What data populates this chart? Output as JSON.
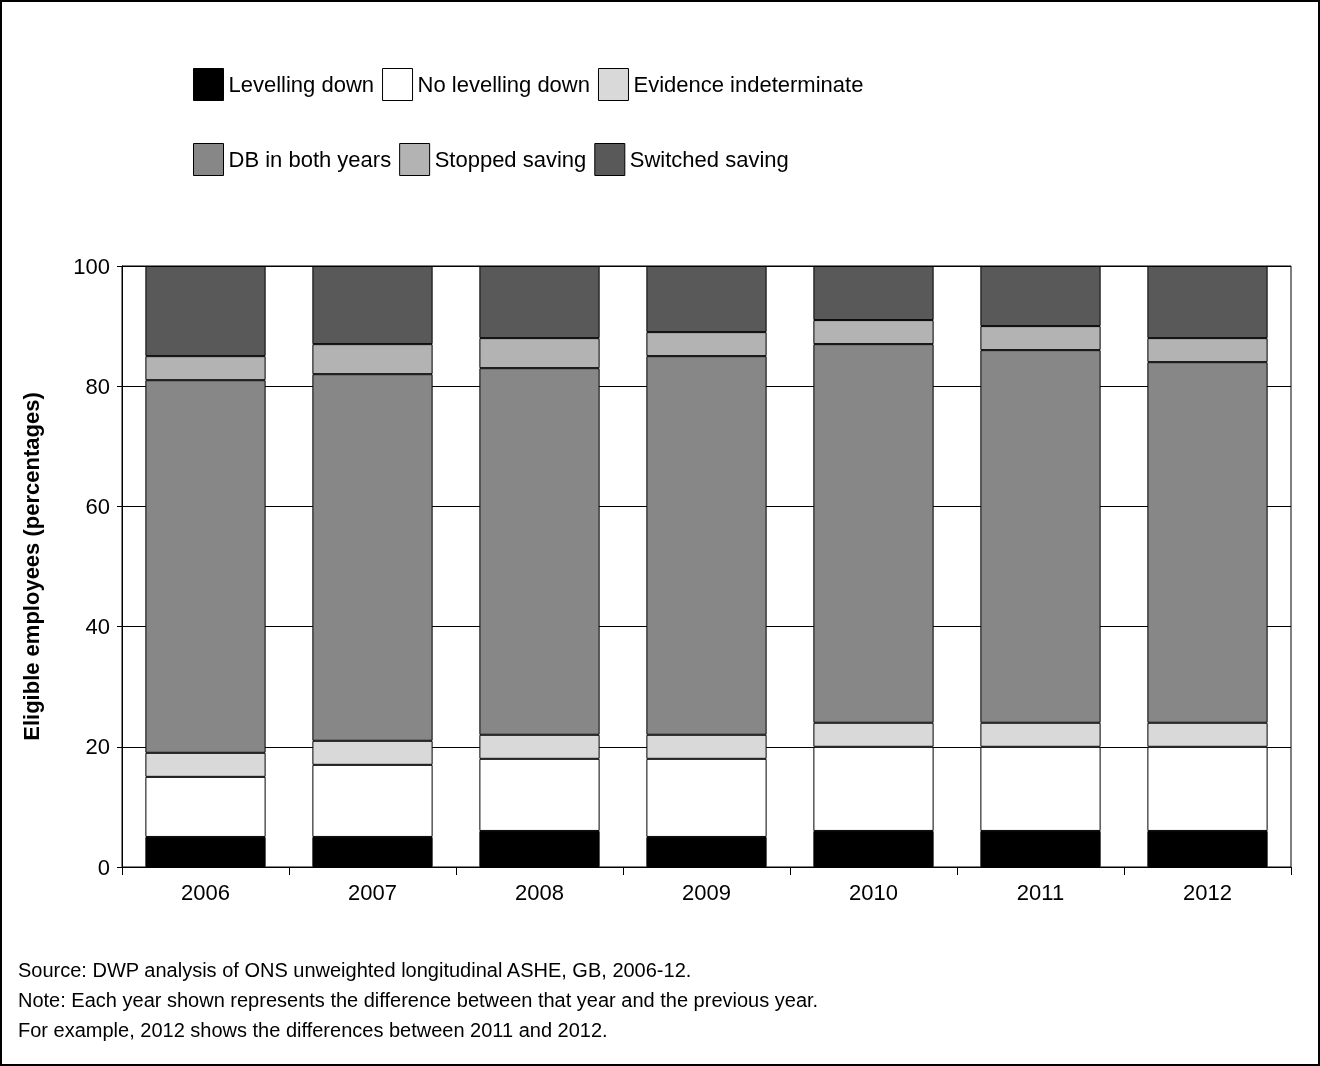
{
  "chart_data": {
    "type": "bar",
    "stacked": true,
    "ylabel": "Eligible employees (percentages)",
    "categories": [
      "2006",
      "2007",
      "2008",
      "2009",
      "2010",
      "2011",
      "2012"
    ],
    "series": [
      {
        "name": "Levelling down",
        "color": "#000000",
        "values": [
          5,
          5,
          6,
          5,
          6,
          6,
          6
        ]
      },
      {
        "name": "No levelling down",
        "color": "#ffffff",
        "values": [
          10,
          12,
          12,
          13,
          14,
          14,
          14
        ]
      },
      {
        "name": "Evidence indeterminate",
        "color": "#d9d9d9",
        "values": [
          4,
          4,
          4,
          4,
          4,
          4,
          4
        ]
      },
      {
        "name": "DB in both years",
        "color": "#878787",
        "values": [
          62,
          61,
          61,
          63,
          63,
          62,
          60
        ]
      },
      {
        "name": "Stopped saving",
        "color": "#b3b3b3",
        "values": [
          4,
          5,
          5,
          4,
          4,
          4,
          4
        ]
      },
      {
        "name": "Switched saving",
        "color": "#595959",
        "values": [
          15,
          13,
          12,
          11,
          9,
          10,
          12
        ]
      }
    ],
    "ylim": [
      0,
      100
    ],
    "yticks": [
      0,
      20,
      40,
      60,
      80,
      100
    ],
    "grid": "y",
    "legend": "top",
    "annotations": [
      "Source: DWP analysis of ONS unweighted longitudinal ASHE, GB, 2006-12.",
      "Note: Each year shown represents the difference between that year and the previous year.",
      "For example, 2012 shows the differences between 2011 and 2012."
    ]
  }
}
